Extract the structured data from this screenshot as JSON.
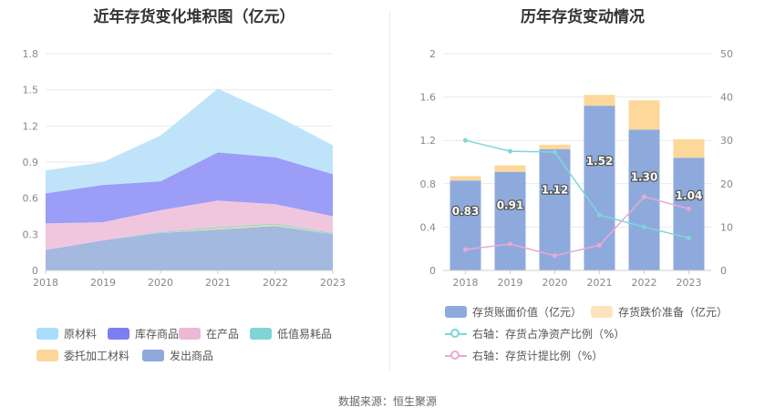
{
  "footer": {
    "source": "数据来源：恒生聚源"
  },
  "chart_data": [
    {
      "type": "area",
      "title": "近年存货变化堆积图（亿元）",
      "x": [
        "2018",
        "2019",
        "2020",
        "2021",
        "2022",
        "2023"
      ],
      "ylim": [
        0,
        1.8
      ],
      "yticks": [
        "0",
        "0.3",
        "0.6",
        "0.9",
        "1.2",
        "1.5",
        "1.8"
      ],
      "stacked": true,
      "grid": true,
      "legend_position": "bottom",
      "series": [
        {
          "name": "发出商品",
          "color": "#a3b9e0",
          "values": [
            0.17,
            0.25,
            0.31,
            0.34,
            0.37,
            0.3
          ]
        },
        {
          "name": "委托加工材料",
          "color": "#fbd79a",
          "values": [
            0.0,
            0.0,
            0.0,
            0.01,
            0.01,
            0.0
          ]
        },
        {
          "name": "低值易耗品",
          "color": "#8dd8d8",
          "values": [
            0.0,
            0.0,
            0.01,
            0.01,
            0.01,
            0.01
          ]
        },
        {
          "name": "在产品",
          "color": "#f0c6df",
          "values": [
            0.22,
            0.15,
            0.18,
            0.22,
            0.16,
            0.14
          ]
        },
        {
          "name": "库存商品",
          "color": "#9b9df7",
          "values": [
            0.25,
            0.31,
            0.24,
            0.4,
            0.39,
            0.35
          ]
        },
        {
          "name": "原材料",
          "color": "#bfe4f9",
          "values": [
            0.19,
            0.19,
            0.38,
            0.53,
            0.35,
            0.24
          ]
        }
      ],
      "legend_order": [
        "原材料",
        "库存商品",
        "在产品",
        "低值易耗品",
        "委托加工材料",
        "发出商品"
      ],
      "legend_colors": {
        "原材料": "#a8defa",
        "库存商品": "#7c7ff2",
        "在产品": "#ebb8d6",
        "低值易耗品": "#7fd5d5",
        "委托加工材料": "#fbd79a",
        "发出商品": "#8fa9dc"
      }
    },
    {
      "type": "bar",
      "title": "历年存货变动情况",
      "categories": [
        "2018",
        "2019",
        "2020",
        "2021",
        "2022",
        "2023"
      ],
      "ylim": [
        0,
        2
      ],
      "yticks": [
        "0",
        "0.4",
        "0.8",
        "1.2",
        "1.6",
        "2"
      ],
      "y2lim": [
        0,
        50
      ],
      "y2ticks": [
        "0",
        "10",
        "20",
        "30",
        "40",
        "50"
      ],
      "grid": true,
      "legend_position": "bottom",
      "series": [
        {
          "name": "存货账面价值（亿元）",
          "color": "#8eaadc",
          "values": [
            0.83,
            0.91,
            1.12,
            1.52,
            1.3,
            1.04
          ],
          "labels": [
            "0.83",
            "0.91",
            "1.12",
            "1.52",
            "1.30",
            "1.04"
          ]
        },
        {
          "name": "存货跌价准备（亿元）",
          "color": "#fdd89a",
          "legend_color": "#fde3bd",
          "values": [
            0.04,
            0.06,
            0.04,
            0.1,
            0.27,
            0.17
          ]
        }
      ],
      "line_series": [
        {
          "name": "右轴：存货占净资产比例（%）",
          "color": "#7fd6d6",
          "axis": "right",
          "values": [
            30.0,
            27.5,
            27.3,
            12.8,
            10.0,
            7.5
          ]
        },
        {
          "name": "右轴：存货计提比例（%）",
          "color": "#eba9d0",
          "axis": "right",
          "values": [
            4.8,
            6.1,
            3.4,
            5.8,
            17.0,
            14.2
          ]
        }
      ]
    }
  ]
}
